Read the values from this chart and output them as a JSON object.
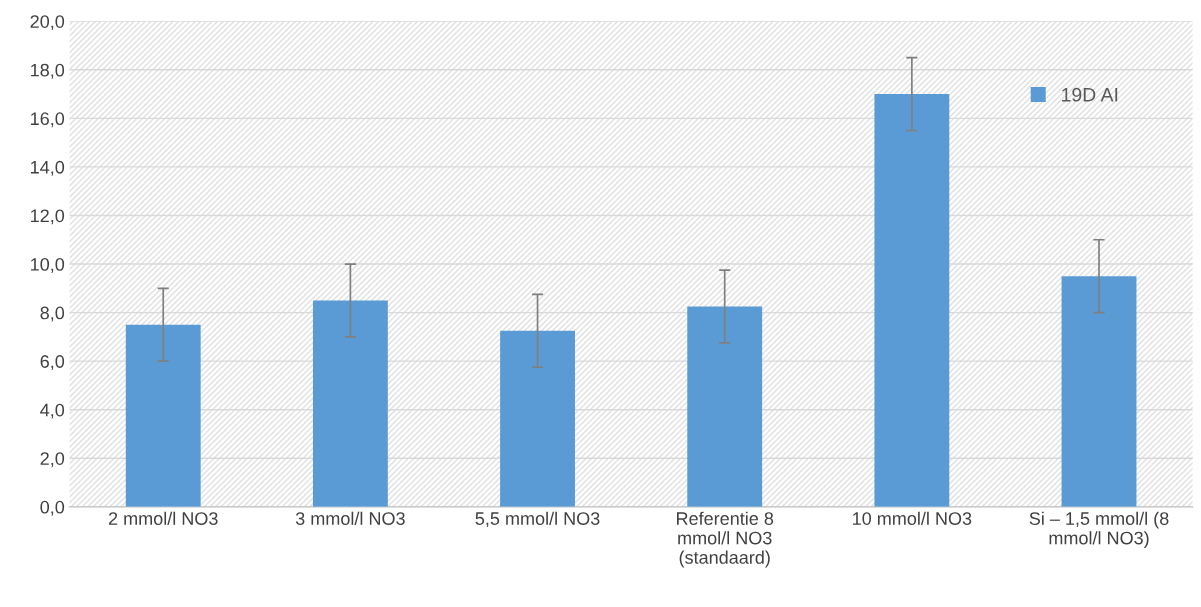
{
  "chart_data": {
    "type": "bar",
    "categories": [
      "2 mmol/l NO3",
      "3 mmol/l NO3",
      "5,5 mmol/l NO3",
      "Referentie 8\nmmol/l NO3\n(standaard)",
      "10 mmol/l NO3",
      "Si – 1,5 mmol/l (8\nmmol/l NO3)"
    ],
    "series": [
      {
        "name": "19D AI",
        "color": "#5b9bd5",
        "values": [
          7.5,
          8.5,
          7.25,
          8.25,
          17.0,
          9.5
        ],
        "errors": [
          1.5,
          1.5,
          1.5,
          1.5,
          1.5,
          1.5
        ]
      }
    ],
    "ylim": [
      0,
      20
    ],
    "yticks": [
      {
        "value": 0,
        "label": "0,0"
      },
      {
        "value": 2,
        "label": "2,0"
      },
      {
        "value": 4,
        "label": "4,0"
      },
      {
        "value": 6,
        "label": "6,0"
      },
      {
        "value": 8,
        "label": "8,0"
      },
      {
        "value": 10,
        "label": "10,0"
      },
      {
        "value": 12,
        "label": "12,0"
      },
      {
        "value": 14,
        "label": "14,0"
      },
      {
        "value": 16,
        "label": "16,0"
      },
      {
        "value": 18,
        "label": "18,0"
      },
      {
        "value": 20,
        "label": "20,0"
      }
    ],
    "grid": "y",
    "legend": "top right"
  }
}
